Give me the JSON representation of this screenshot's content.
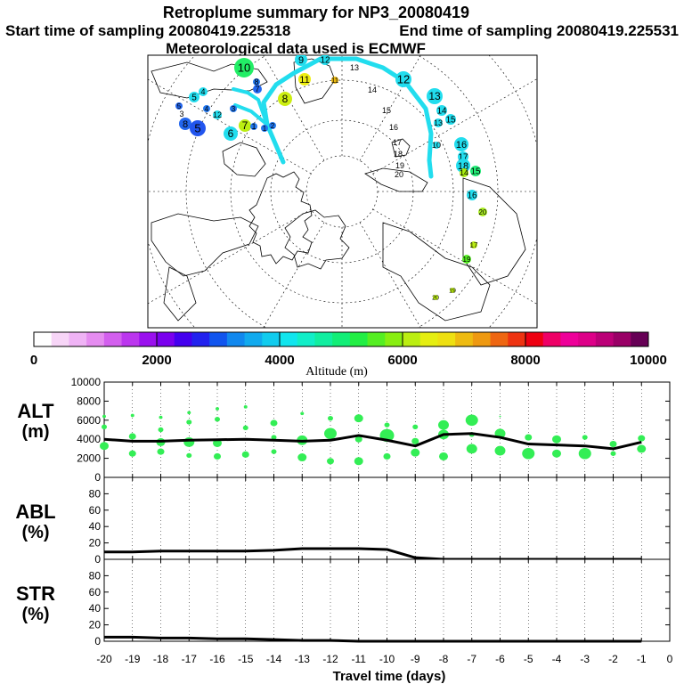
{
  "title": "Retroplume summary for NP3_20080419",
  "start_label": "Start time of sampling 20080419.225318",
  "end_label": "End time of sampling 20080419.225531",
  "met_label": "Meteorological data used is ECMWF",
  "colorbar": {
    "label": "Altitude (m)",
    "ticks": [
      "0",
      "2000",
      "4000",
      "6000",
      "8000",
      "10000"
    ],
    "colors": [
      "#ffffff",
      "#f7d5f7",
      "#efb3f5",
      "#e58cf0",
      "#d35fee",
      "#bb36ee",
      "#9a10ee",
      "#7a00ee",
      "#4400ee",
      "#2222ee",
      "#1155ee",
      "#1188ee",
      "#11aaee",
      "#11ccee",
      "#11e5ee",
      "#11eec8",
      "#11eea0",
      "#11ee77",
      "#22ee44",
      "#55ee22",
      "#88ee11",
      "#bbee11",
      "#e5ee11",
      "#eee011",
      "#eebb11",
      "#ee9911",
      "#ee6611",
      "#ee3311",
      "#ee0011",
      "#ee0066",
      "#ee0099",
      "#dd0088",
      "#bb0077",
      "#990066",
      "#660055"
    ]
  },
  "map": {
    "labels": [
      {
        "t": "10",
        "x": 274,
        "y": 76,
        "c": "#22ee66",
        "r": 11,
        "fs": 13
      },
      {
        "t": "9",
        "x": 338,
        "y": 67,
        "c": "#22ddee",
        "r": 7,
        "fs": 11
      },
      {
        "t": "12",
        "x": 365,
        "y": 67,
        "c": "#22ddee",
        "r": 6,
        "fs": 10
      },
      {
        "t": "11",
        "x": 342,
        "y": 89,
        "c": "#eeee11",
        "r": 7,
        "fs": 11
      },
      {
        "t": "11",
        "x": 376,
        "y": 90,
        "c": "#eebb11",
        "r": 4,
        "fs": 8
      },
      {
        "t": "12",
        "x": 453,
        "y": 89,
        "c": "#22ddee",
        "r": 9,
        "fs": 13
      },
      {
        "t": "13",
        "x": 488,
        "y": 108,
        "c": "#22ddee",
        "r": 9,
        "fs": 12
      },
      {
        "t": "14",
        "x": 496,
        "y": 124,
        "c": "#22ddee",
        "r": 6,
        "fs": 10
      },
      {
        "t": "15",
        "x": 506,
        "y": 134,
        "c": "#22ddee",
        "r": 6,
        "fs": 10
      },
      {
        "t": "13",
        "x": 492,
        "y": 138,
        "c": "#22ddee",
        "r": 5,
        "fs": 9
      },
      {
        "t": "16",
        "x": 518,
        "y": 162,
        "c": "#22ddee",
        "r": 8,
        "fs": 11
      },
      {
        "t": "17",
        "x": 520,
        "y": 176,
        "c": "#22ddee",
        "r": 6,
        "fs": 10
      },
      {
        "t": "18",
        "x": 520,
        "y": 186,
        "c": "#22ddee",
        "r": 8,
        "fs": 11
      },
      {
        "t": "15",
        "x": 534,
        "y": 192,
        "c": "#22ee77",
        "r": 6,
        "fs": 10
      },
      {
        "t": "14",
        "x": 521,
        "y": 194,
        "c": "#aaee11",
        "r": 5,
        "fs": 9
      },
      {
        "t": "10",
        "x": 490,
        "y": 163,
        "c": "#22ddee",
        "r": 4,
        "fs": 9
      },
      {
        "t": "16",
        "x": 530,
        "y": 219,
        "c": "#22ddee",
        "r": 6,
        "fs": 10
      },
      {
        "t": "20",
        "x": 542,
        "y": 238,
        "c": "#aaee22",
        "r": 5,
        "fs": 8
      },
      {
        "t": "17",
        "x": 532,
        "y": 275,
        "c": "#bbee11",
        "r": 4,
        "fs": 8
      },
      {
        "t": "19",
        "x": 524,
        "y": 291,
        "c": "#55ee22",
        "r": 5,
        "fs": 8
      },
      {
        "t": "19",
        "x": 508,
        "y": 326,
        "c": "#bbee11",
        "r": 3,
        "fs": 7
      },
      {
        "t": "20",
        "x": 489,
        "y": 334,
        "c": "#bbee11",
        "r": 3,
        "fs": 7
      },
      {
        "t": "5",
        "x": 218,
        "y": 109,
        "c": "#22ddee",
        "r": 6,
        "fs": 10
      },
      {
        "t": "4",
        "x": 228,
        "y": 103,
        "c": "#22ddee",
        "r": 5,
        "fs": 9
      },
      {
        "t": "5",
        "x": 201,
        "y": 119,
        "c": "#2266ee",
        "r": 4,
        "fs": 8
      },
      {
        "t": "3",
        "x": 204,
        "y": 128,
        "c": "#fff",
        "r": 0,
        "fs": 9
      },
      {
        "t": "4",
        "x": 232,
        "y": 122,
        "c": "#2277ee",
        "r": 4,
        "fs": 8
      },
      {
        "t": "12",
        "x": 244,
        "y": 129,
        "c": "#22ddee",
        "r": 5,
        "fs": 9
      },
      {
        "t": "8",
        "x": 208,
        "y": 139,
        "c": "#2266ee",
        "r": 7,
        "fs": 11
      },
      {
        "t": "5",
        "x": 222,
        "y": 144,
        "c": "#2255ee",
        "r": 9,
        "fs": 13
      },
      {
        "t": "6",
        "x": 259,
        "y": 150,
        "c": "#22ddee",
        "r": 8,
        "fs": 12
      },
      {
        "t": "7",
        "x": 275,
        "y": 141,
        "c": "#bbee11",
        "r": 7,
        "fs": 12
      },
      {
        "t": "1",
        "x": 285,
        "y": 142,
        "c": "#2277ee",
        "r": 4,
        "fs": 9
      },
      {
        "t": "1",
        "x": 297,
        "y": 144,
        "c": "#2277ee",
        "r": 4,
        "fs": 8
      },
      {
        "t": "2",
        "x": 306,
        "y": 141,
        "c": "#2277ee",
        "r": 4,
        "fs": 8
      },
      {
        "t": "3",
        "x": 262,
        "y": 122,
        "c": "#2277ee",
        "r": 4,
        "fs": 8
      },
      {
        "t": "8",
        "x": 288,
        "y": 92,
        "c": "#2277ee",
        "r": 4,
        "fs": 9
      },
      {
        "t": "7",
        "x": 289,
        "y": 100,
        "c": "#2266ee",
        "r": 5,
        "fs": 9
      },
      {
        "t": "8",
        "x": 320,
        "y": 111,
        "c": "#ccee11",
        "r": 8,
        "fs": 12
      },
      {
        "t": "13",
        "x": 398,
        "y": 76,
        "c": "#ffffff",
        "r": 0,
        "fs": 9
      },
      {
        "t": "14",
        "x": 418,
        "y": 101,
        "c": "#ffffff",
        "r": 0,
        "fs": 9
      },
      {
        "t": "15",
        "x": 434,
        "y": 124,
        "c": "#ffffff",
        "r": 0,
        "fs": 9
      },
      {
        "t": "16",
        "x": 442,
        "y": 143,
        "c": "#ffffff",
        "r": 0,
        "fs": 9
      },
      {
        "t": "17",
        "x": 446,
        "y": 160,
        "c": "#ffffff",
        "r": 0,
        "fs": 9
      },
      {
        "t": "18",
        "x": 447,
        "y": 173,
        "c": "#ffffff",
        "r": 0,
        "fs": 9
      },
      {
        "t": "19",
        "x": 449,
        "y": 186,
        "c": "#ffffff",
        "r": 0,
        "fs": 9
      },
      {
        "t": "20",
        "x": 448,
        "y": 196,
        "c": "#ffffff",
        "r": 0,
        "fs": 9
      }
    ]
  },
  "chart_data": [
    {
      "type": "line",
      "name": "ALT",
      "title": "ALT",
      "ylabel": "(m)",
      "ylim": [
        0,
        10000
      ],
      "yticks": [
        "0",
        "2000",
        "4000",
        "6000",
        "8000",
        "10000"
      ],
      "x": [
        -20,
        -19,
        -18,
        -17,
        -16,
        -15,
        -14,
        -13,
        -12,
        -11,
        -10,
        -9,
        -8,
        -7,
        -6,
        -5,
        -4,
        -3,
        -2,
        -1
      ],
      "mean": [
        4000,
        3800,
        3800,
        3900,
        3950,
        4000,
        3900,
        3800,
        3900,
        4400,
        3900,
        3300,
        4500,
        4600,
        4200,
        3500,
        3400,
        3300,
        3000,
        3700
      ],
      "spread_points": [
        {
          "x": -20,
          "alt": 6400,
          "s": 2
        },
        {
          "x": -20,
          "alt": 5300,
          "s": 3
        },
        {
          "x": -20,
          "alt": 3300,
          "s": 5
        },
        {
          "x": -19,
          "alt": 6500,
          "s": 2
        },
        {
          "x": -19,
          "alt": 4300,
          "s": 4
        },
        {
          "x": -19,
          "alt": 2500,
          "s": 4
        },
        {
          "x": -18,
          "alt": 6300,
          "s": 2
        },
        {
          "x": -18,
          "alt": 5000,
          "s": 3
        },
        {
          "x": -18,
          "alt": 3700,
          "s": 5
        },
        {
          "x": -18,
          "alt": 2700,
          "s": 4
        },
        {
          "x": -17,
          "alt": 6800,
          "s": 2
        },
        {
          "x": -17,
          "alt": 5800,
          "s": 3
        },
        {
          "x": -17,
          "alt": 3700,
          "s": 6
        },
        {
          "x": -17,
          "alt": 2300,
          "s": 3
        },
        {
          "x": -16,
          "alt": 7200,
          "s": 2
        },
        {
          "x": -16,
          "alt": 6100,
          "s": 3
        },
        {
          "x": -16,
          "alt": 3600,
          "s": 5
        },
        {
          "x": -16,
          "alt": 2200,
          "s": 4
        },
        {
          "x": -15,
          "alt": 7400,
          "s": 2
        },
        {
          "x": -15,
          "alt": 5200,
          "s": 3
        },
        {
          "x": -15,
          "alt": 2400,
          "s": 4
        },
        {
          "x": -14,
          "alt": 5700,
          "s": 4
        },
        {
          "x": -14,
          "alt": 4200,
          "s": 3
        },
        {
          "x": -14,
          "alt": 2700,
          "s": 3
        },
        {
          "x": -13,
          "alt": 6700,
          "s": 2
        },
        {
          "x": -13,
          "alt": 3900,
          "s": 6
        },
        {
          "x": -13,
          "alt": 2100,
          "s": 5
        },
        {
          "x": -12,
          "alt": 6200,
          "s": 3
        },
        {
          "x": -12,
          "alt": 4600,
          "s": 7
        },
        {
          "x": -12,
          "alt": 1700,
          "s": 4
        },
        {
          "x": -11,
          "alt": 6200,
          "s": 5
        },
        {
          "x": -11,
          "alt": 4000,
          "s": 4
        },
        {
          "x": -11,
          "alt": 1700,
          "s": 5
        },
        {
          "x": -10,
          "alt": 5500,
          "s": 3
        },
        {
          "x": -10,
          "alt": 4400,
          "s": 8
        },
        {
          "x": -10,
          "alt": 2200,
          "s": 4
        },
        {
          "x": -9,
          "alt": 5300,
          "s": 3
        },
        {
          "x": -9,
          "alt": 3800,
          "s": 4
        },
        {
          "x": -9,
          "alt": 2600,
          "s": 5
        },
        {
          "x": -8,
          "alt": 5500,
          "s": 6
        },
        {
          "x": -8,
          "alt": 4500,
          "s": 6
        },
        {
          "x": -8,
          "alt": 2200,
          "s": 5
        },
        {
          "x": -7,
          "alt": 6000,
          "s": 7
        },
        {
          "x": -7,
          "alt": 4500,
          "s": 3
        },
        {
          "x": -7,
          "alt": 3000,
          "s": 6
        },
        {
          "x": -6,
          "alt": 6400,
          "s": 1
        },
        {
          "x": -6,
          "alt": 4600,
          "s": 6
        },
        {
          "x": -6,
          "alt": 2800,
          "s": 6
        },
        {
          "x": -5,
          "alt": 4200,
          "s": 4
        },
        {
          "x": -5,
          "alt": 2500,
          "s": 7
        },
        {
          "x": -4,
          "alt": 4000,
          "s": 5
        },
        {
          "x": -4,
          "alt": 2500,
          "s": 5
        },
        {
          "x": -3,
          "alt": 4200,
          "s": 3
        },
        {
          "x": -3,
          "alt": 2500,
          "s": 7
        },
        {
          "x": -2,
          "alt": 3500,
          "s": 4
        },
        {
          "x": -2,
          "alt": 2500,
          "s": 3
        },
        {
          "x": -1,
          "alt": 4100,
          "s": 4
        },
        {
          "x": -1,
          "alt": 3000,
          "s": 5
        }
      ]
    },
    {
      "type": "line",
      "name": "ABL",
      "title": "ABL",
      "ylabel": "(%)",
      "ylim": [
        0,
        100
      ],
      "yticks": [
        "0",
        "20",
        "40",
        "60",
        "80"
      ],
      "x": [
        -20,
        -19,
        -18,
        -17,
        -16,
        -15,
        -14,
        -13,
        -12,
        -11,
        -10,
        -9,
        -8,
        -7,
        -6,
        -5,
        -4,
        -3,
        -2,
        -1
      ],
      "values": [
        9,
        9,
        10,
        10,
        10,
        10,
        11,
        13,
        13,
        13,
        12,
        2,
        0,
        0,
        0,
        0,
        0,
        0,
        0,
        0
      ]
    },
    {
      "type": "line",
      "name": "STR",
      "title": "STR",
      "ylabel": "(%)",
      "ylim": [
        0,
        100
      ],
      "yticks": [
        "0",
        "20",
        "40",
        "60",
        "80"
      ],
      "x": [
        -20,
        -19,
        -18,
        -17,
        -16,
        -15,
        -14,
        -13,
        -12,
        -11,
        -10,
        -9,
        -8,
        -7,
        -6,
        -5,
        -4,
        -3,
        -2,
        -1
      ],
      "values": [
        5,
        5,
        4,
        4,
        3,
        3,
        2,
        1,
        1,
        0,
        0,
        0,
        0,
        0,
        0,
        0,
        0,
        0,
        0,
        0
      ]
    }
  ],
  "xaxis": {
    "label": "Travel time (days)",
    "ticks": [
      "-20",
      "-19",
      "-18",
      "-17",
      "-16",
      "-15",
      "-14",
      "-13",
      "-12",
      "-11",
      "-10",
      "-9",
      "-8",
      "-7",
      "-6",
      "-5",
      "-4",
      "-3",
      "-2",
      "-1",
      "0"
    ]
  }
}
